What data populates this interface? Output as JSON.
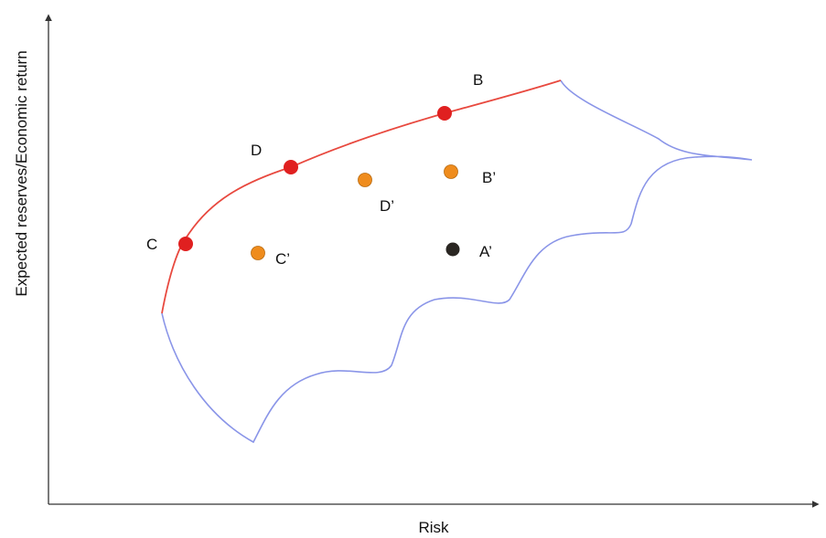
{
  "axes": {
    "x_label": "Risk",
    "y_label": "Expected reserves/Economic return"
  },
  "colors": {
    "frontier": "#e8493f",
    "boundary": "#8a95e8",
    "efficient_point": "#e02020",
    "inefficient_point": "#ef8c1d",
    "reference_point": "#2a2622",
    "axis": "#333333"
  },
  "points": {
    "B": "B",
    "C": "C",
    "D": "D",
    "B_prime": "B’",
    "C_prime": "C’",
    "D_prime": "D’",
    "A_prime": "A’"
  }
}
